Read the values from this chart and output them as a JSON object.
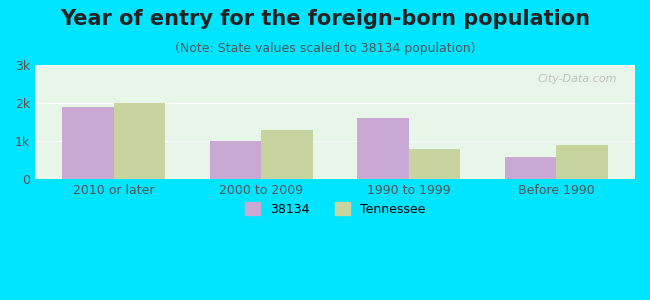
{
  "title": "Year of entry for the foreign-born population",
  "subtitle": "(Note: State values scaled to 38134 population)",
  "categories": [
    "2010 or later",
    "2000 to 2009",
    "1990 to 1999",
    "Before 1990"
  ],
  "values_38134": [
    1900,
    1000,
    1600,
    580
  ],
  "values_tennessee": [
    2000,
    1280,
    800,
    900
  ],
  "color_38134": "#c9a8d4",
  "color_tennessee": "#c8d4a0",
  "background_outer": "#00e5ff",
  "background_chart": "#e8f5e9",
  "background_chart_top": "#ffffff",
  "ylim": [
    0,
    3000
  ],
  "yticks": [
    0,
    1000,
    2000,
    3000
  ],
  "ytick_labels": [
    "0",
    "1k",
    "2k",
    "3k"
  ],
  "legend_label_1": "38134",
  "legend_label_2": "Tennessee",
  "bar_width": 0.35,
  "title_fontsize": 15,
  "subtitle_fontsize": 9,
  "watermark": "City-Data.com"
}
